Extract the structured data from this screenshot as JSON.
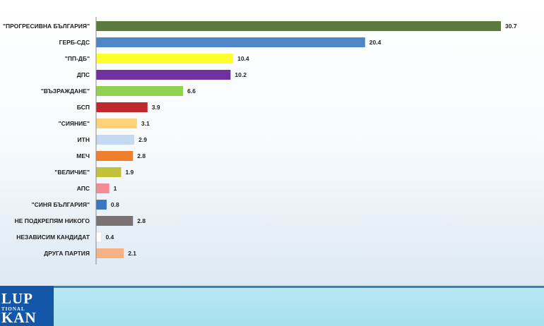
{
  "chart_data": {
    "type": "bar",
    "orientation": "horizontal",
    "categories": [
      "\"ПРОГРЕСИВНА БЪЛГАРИЯ\"",
      "ГЕРБ-СДС",
      "\"ПП-ДБ\"",
      "ДПС",
      "\"ВЪЗРАЖДАНЕ\"",
      "БСП",
      "\"СИЯНИЕ\"",
      "ИТН",
      "МЕЧ",
      "\"ВЕЛИЧИЕ\"",
      "АПС",
      "\"СИНЯ БЪЛГАРИЯ\"",
      "НЕ ПОДКРЕПЯМ НИКОГО",
      "НЕЗАВИСИМ КАНДИДАТ",
      "ДРУГА ПАРТИЯ"
    ],
    "values": [
      30.7,
      20.4,
      10.4,
      10.2,
      6.6,
      3.9,
      3.1,
      2.9,
      2.8,
      1.9,
      1,
      0.8,
      2.8,
      0.4,
      2.1
    ],
    "value_labels": [
      "30.7",
      "20.4",
      "10.4",
      "10.2",
      "6.6",
      "3.9",
      "3.1",
      "2.9",
      "2.8",
      "1.9",
      "1",
      "0.8",
      "2.8",
      "0.4",
      "2.1"
    ],
    "colors": [
      "#5a7a3e",
      "#4f86c6",
      "#ffff2e",
      "#7030a0",
      "#92d050",
      "#c0282d",
      "#ffd27a",
      "#c5d9f1",
      "#f07f2c",
      "#c2c23a",
      "#f28b94",
      "#3a78c0",
      "#7a7272",
      "#ffffff",
      "#f4b183"
    ],
    "xlim": [
      0,
      30.7
    ],
    "title": "",
    "xlabel": "",
    "ylabel": "",
    "grid": false,
    "legend": "none"
  },
  "logo": {
    "line1": "LUP",
    "line2": "TIONAL",
    "line3": "KAN",
    "color": "#1457a8"
  },
  "colors": {
    "axis": "#8c8c8c",
    "band": "#a6e0ef",
    "band_border": "#3b7fc0"
  }
}
